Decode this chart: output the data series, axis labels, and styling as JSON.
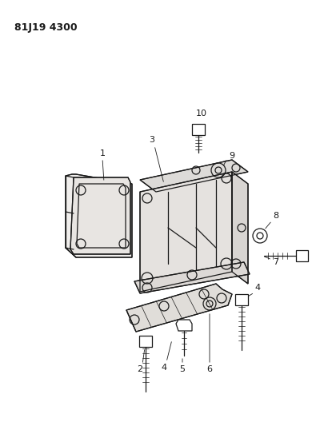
{
  "title": "81J19 4300",
  "bg_color": "#ffffff",
  "line_color": "#1a1a1a",
  "figsize": [
    4.06,
    5.33
  ],
  "dpi": 100,
  "title_fontsize": 9,
  "label_fontsize": 8
}
